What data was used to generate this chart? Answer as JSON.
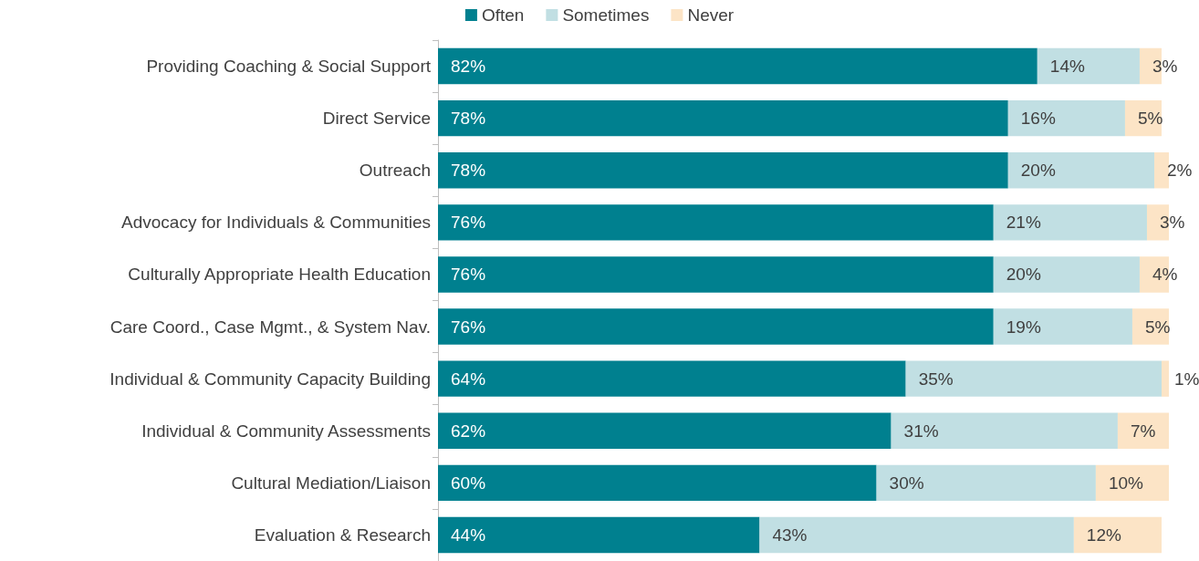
{
  "chart_data": {
    "type": "bar",
    "orientation": "horizontal",
    "stacked": true,
    "legend": "top",
    "categories": [
      "Providing Coaching & Social Support",
      "Direct Service",
      "Outreach",
      "Advocacy for Individuals & Communities",
      "Culturally Appropriate Health Education",
      "Care Coord., Case Mgmt., & System Nav.",
      "Individual & Community Capacity Building",
      "Individual & Community Assessments",
      "Cultural Mediation/Liaison",
      "Evaluation & Research"
    ],
    "series": [
      {
        "name": "Often",
        "color": "#00808f",
        "values": [
          82,
          78,
          78,
          76,
          76,
          76,
          64,
          62,
          60,
          44
        ],
        "value_labels": [
          "82%",
          "78%",
          "78%",
          "76%",
          "76%",
          "76%",
          "64%",
          "62%",
          "60%",
          "44%"
        ]
      },
      {
        "name": "Sometimes",
        "color": "#c1dfe3",
        "values": [
          14,
          16,
          20,
          21,
          20,
          19,
          35,
          31,
          30,
          43
        ],
        "value_labels": [
          "14%",
          "16%",
          "20%",
          "21%",
          "20%",
          "19%",
          "35%",
          "31%",
          "30%",
          "43%"
        ]
      },
      {
        "name": "Never",
        "color": "#fce4c6",
        "values": [
          3,
          5,
          2,
          3,
          4,
          5,
          1,
          7,
          10,
          12
        ],
        "value_labels": [
          "3%",
          "5%",
          "2%",
          "3%",
          "4%",
          "5%",
          "1%",
          "7%",
          "10%",
          "12%"
        ]
      }
    ]
  }
}
